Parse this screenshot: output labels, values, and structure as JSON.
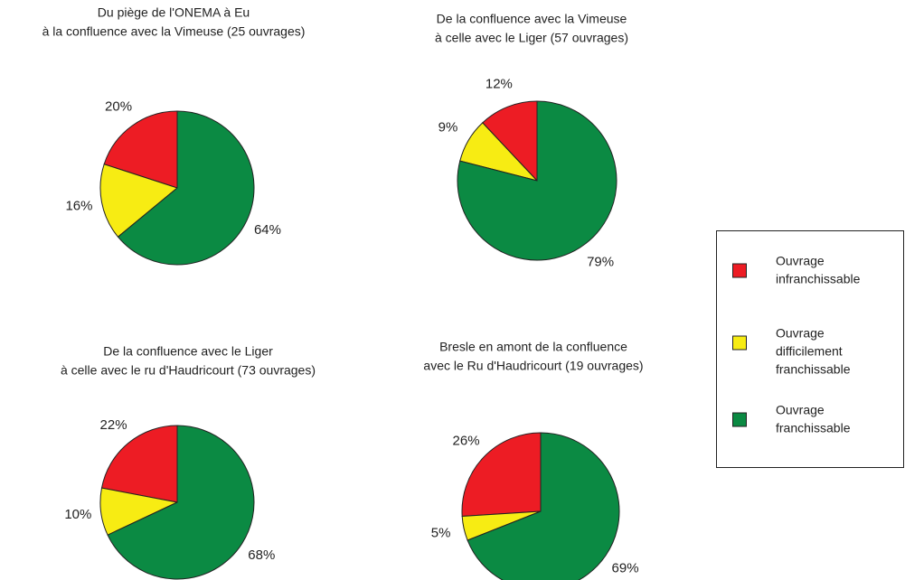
{
  "chart_data": [
    {
      "type": "pie",
      "title": [
        "Du piège de l'ONEMA à Eu",
        "à la confluence avec la Vimeuse (25 ouvrages)"
      ],
      "values": [
        20,
        16,
        64
      ],
      "value_labels": [
        "20%",
        "16%",
        "64%"
      ]
    },
    {
      "type": "pie",
      "title": [
        "De la confluence avec la Vimeuse",
        "à celle avec le Liger (57 ouvrages)"
      ],
      "values": [
        12,
        9,
        79
      ],
      "value_labels": [
        "12%",
        "9%",
        "79%"
      ]
    },
    {
      "type": "pie",
      "title": [
        "De la confluence avec le Liger",
        "à celle avec le ru d'Haudricourt (73 ouvrages)"
      ],
      "values": [
        22,
        10,
        68
      ],
      "value_labels": [
        "22%",
        "10%",
        "68%"
      ]
    },
    {
      "type": "pie",
      "title": [
        "Bresle en amont de la confluence",
        "avec le Ru d'Haudricourt (19 ouvrages)"
      ],
      "values": [
        26,
        5,
        69
      ],
      "value_labels": [
        "26%",
        "5%",
        "69%"
      ]
    }
  ],
  "legend": [
    {
      "label": [
        "Ouvrage",
        "infranchissable"
      ],
      "color": "#ed1c24"
    },
    {
      "label": [
        "Ouvrage",
        "difficilement",
        "franchissable"
      ],
      "color": "#f7ec13"
    },
    {
      "label": [
        "Ouvrage",
        "franchissable"
      ],
      "color": "#0b8a43"
    }
  ]
}
